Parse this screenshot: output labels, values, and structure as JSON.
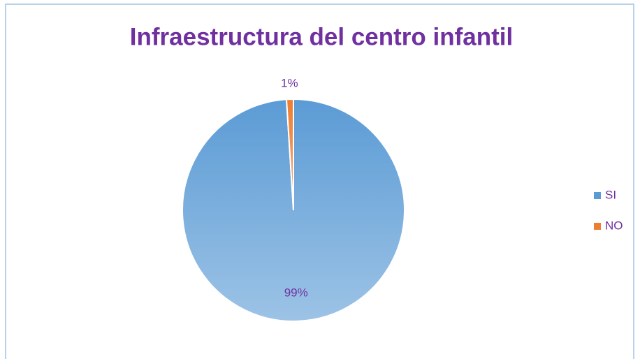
{
  "chart_data": {
    "type": "pie",
    "title": "Infraestructura del centro infantil",
    "categories": [
      "SI",
      "NO"
    ],
    "values": [
      99,
      1
    ],
    "value_labels": [
      "99%",
      "1%"
    ],
    "colors": [
      "#5b9bd5",
      "#ed7d31"
    ],
    "legend": "right"
  }
}
